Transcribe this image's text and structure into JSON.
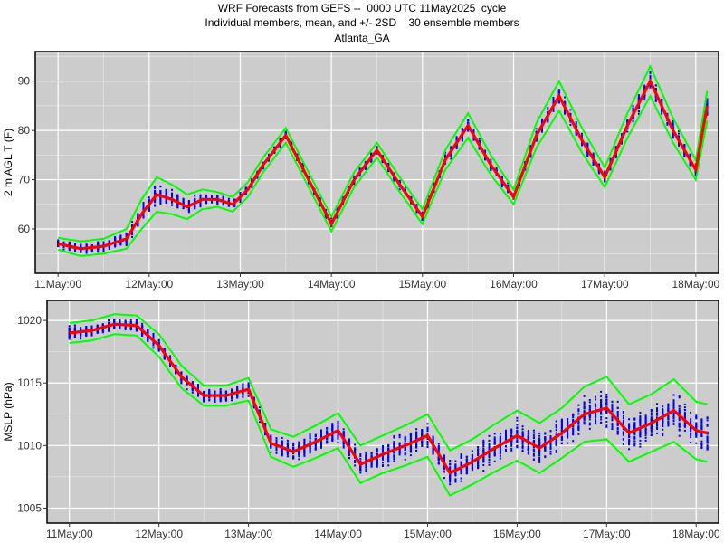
{
  "titles": {
    "line1": "WRF Forecasts from GEFS --  0000 UTC 11May2025  cycle",
    "line2": "Individual members, mean, and +/- 2SD    30 ensemble members",
    "line3": "Atlanta_GA"
  },
  "colors": {
    "panel_bg": "#cccccc",
    "grid": "#ffffff",
    "members": "#0000ff",
    "mean": "#ff0000",
    "sd_bands": "#00ff00",
    "border": "#000000"
  },
  "chart_data": [
    {
      "type": "line",
      "ylabel": "2 m AGL T (F)",
      "xlabel": "",
      "x_unit": "hours since 11May:00",
      "x_ticks": [
        "11May:00",
        "12May:00",
        "13May:00",
        "14May:00",
        "15May:00",
        "16May:00",
        "17May:00",
        "18May:00"
      ],
      "xlim": [
        -6,
        174
      ],
      "y_ticks": [
        60,
        70,
        80,
        90
      ],
      "ylim": [
        51,
        96
      ],
      "grid": true,
      "members_count": 30,
      "x": [
        0,
        6,
        12,
        18,
        22,
        26,
        30,
        34,
        38,
        42,
        46,
        50,
        54,
        60,
        66,
        72,
        78,
        84,
        90,
        96,
        102,
        108,
        114,
        120,
        126,
        132,
        138,
        144,
        150,
        156,
        162,
        168,
        171
      ],
      "mean": [
        57,
        56,
        56.5,
        58,
        63,
        67,
        66,
        64.5,
        66,
        66,
        65,
        68,
        73,
        79,
        70,
        61,
        70,
        76,
        69,
        62.5,
        74,
        81,
        73,
        66.5,
        79,
        87,
        78,
        70.5,
        81,
        90,
        80,
        72,
        85
      ],
      "spread_sd2": [
        1.2,
        1.5,
        1.5,
        2,
        3,
        3.5,
        3,
        2.5,
        2,
        1.5,
        1.5,
        1.5,
        1.5,
        1.5,
        1.5,
        1.5,
        1.5,
        1.5,
        1.5,
        1.5,
        2,
        2.5,
        2,
        1.5,
        2.5,
        3,
        2.5,
        2,
        2.5,
        3,
        2.5,
        2,
        3
      ]
    },
    {
      "type": "line",
      "ylabel": "MSLP (hPa)",
      "xlabel": "",
      "x_unit": "hours since 11May:00",
      "x_ticks": [
        "11May:00",
        "12May:00",
        "13May:00",
        "14May:00",
        "15May:00",
        "16May:00",
        "17May:00",
        "18May:00"
      ],
      "xlim": [
        -6,
        174
      ],
      "y_ticks": [
        1005,
        1010,
        1015,
        1020
      ],
      "ylim": [
        1003.8,
        1021.6
      ],
      "grid": true,
      "members_count": 30,
      "x": [
        0,
        6,
        12,
        18,
        24,
        30,
        36,
        42,
        48,
        54,
        60,
        66,
        72,
        78,
        84,
        90,
        96,
        102,
        108,
        114,
        120,
        126,
        132,
        138,
        144,
        150,
        156,
        162,
        168,
        171
      ],
      "mean": [
        1019,
        1019.2,
        1019.7,
        1019.6,
        1018,
        1015.5,
        1014,
        1014,
        1014.5,
        1010.2,
        1009.5,
        1010.3,
        1011.2,
        1008.5,
        1009.3,
        1010,
        1010.8,
        1007.8,
        1008.7,
        1009.8,
        1010.8,
        1009.8,
        1011,
        1012.5,
        1013,
        1011,
        1011.8,
        1012.8,
        1011.2,
        1011
      ],
      "spread_sd2": [
        0.8,
        0.8,
        0.8,
        0.8,
        0.9,
        0.9,
        0.8,
        0.8,
        0.9,
        1.1,
        1.2,
        1.3,
        1.4,
        1.5,
        1.5,
        1.6,
        1.7,
        1.8,
        1.8,
        1.9,
        2,
        2,
        2,
        2.2,
        2.5,
        2.3,
        2.3,
        2.5,
        2.3,
        2.3
      ]
    }
  ]
}
